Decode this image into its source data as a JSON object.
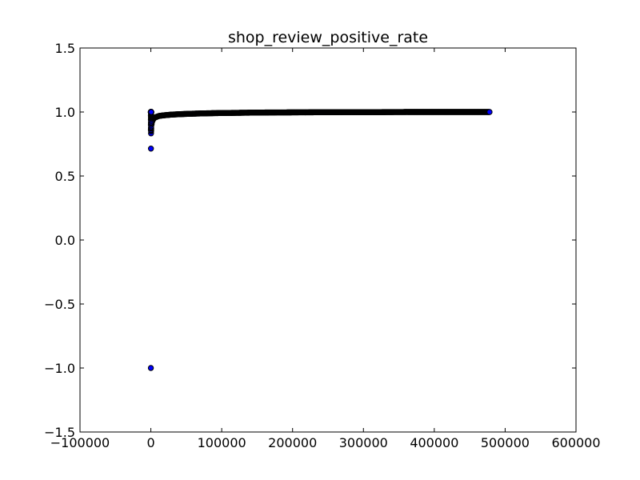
{
  "chart_data": {
    "type": "scatter",
    "title": "shop_review_positive_rate",
    "xlabel": "",
    "ylabel": "",
    "xlim": [
      -100000,
      600000
    ],
    "ylim": [
      -1.5,
      1.5
    ],
    "xticks": [
      -100000,
      0,
      100000,
      200000,
      300000,
      400000,
      500000,
      600000
    ],
    "yticks": [
      -1.5,
      -1.0,
      -0.5,
      0.0,
      0.5,
      1.0,
      1.5
    ],
    "xtick_labels": [
      "−100000",
      "0",
      "100000",
      "200000",
      "300000",
      "400000",
      "500000",
      "600000"
    ],
    "ytick_labels": [
      "−1.5",
      "−1.0",
      "−0.5",
      "0.0",
      "0.5",
      "1.0",
      "1.5"
    ],
    "grid": false,
    "marker_color": "#0000ff",
    "marker_edge_color": "#000000",
    "series": [
      {
        "x": [
          0,
          0,
          0,
          0,
          0,
          0,
          0,
          0,
          0,
          0,
          0,
          0,
          0,
          0,
          0,
          0,
          0,
          0,
          0,
          0,
          0,
          0,
          0,
          0,
          0,
          0,
          0,
          0,
          0,
          0,
          0,
          0,
          0,
          0,
          0,
          0,
          0,
          0,
          0,
          0,
          0,
          0,
          0,
          0,
          0,
          0,
          0,
          0,
          0,
          0,
          0,
          0,
          0,
          0,
          0,
          0,
          0,
          0,
          0,
          0,
          0,
          0,
          0,
          0,
          0,
          0,
          0,
          0,
          0,
          0,
          0,
          0,
          0,
          0,
          0,
          0,
          0,
          0,
          0,
          0,
          0,
          0,
          0,
          0,
          0,
          0,
          0,
          0,
          0,
          0,
          0,
          0,
          0,
          0,
          0,
          0,
          0,
          0,
          0,
          0,
          0,
          0,
          0,
          0,
          0,
          0,
          0,
          0,
          0,
          0,
          0,
          0,
          0,
          0,
          0,
          0,
          0,
          0,
          0,
          0
        ],
        "y": [
          -1.0,
          0.714,
          0.833,
          0.85,
          0.857,
          0.86,
          0.87,
          0.875,
          0.88,
          0.889,
          0.9,
          0.91,
          0.917,
          0.92,
          0.93,
          0.94,
          0.95,
          0.955,
          0.96,
          0.965,
          0.97,
          0.975,
          0.98,
          0.985,
          0.99,
          0.995,
          1.0,
          1.0,
          1.0,
          1.0,
          1.0,
          1.0,
          1.0,
          1.0,
          1.0,
          1.0,
          1.0,
          1.0,
          1.0,
          1.0,
          1.0,
          1.0,
          1.0,
          1.0,
          1.0,
          1.0,
          1.0,
          1.0,
          1.0,
          1.0,
          1.0,
          1.0,
          1.0,
          1.0,
          1.0,
          1.0,
          1.0,
          1.0,
          1.0,
          1.0,
          1.0,
          1.0,
          1.0,
          1.0,
          1.0,
          1.0,
          1.0,
          1.0,
          1.0,
          1.0,
          1.0,
          1.0,
          1.0,
          1.0,
          1.0,
          1.0,
          1.0,
          1.0,
          1.0,
          1.0,
          1.0,
          1.0,
          1.0,
          1.0,
          1.0,
          1.0,
          1.0,
          1.0,
          1.0,
          1.0,
          1.0,
          1.0,
          1.0,
          1.0,
          1.0,
          1.0,
          1.0,
          1.0,
          1.0,
          1.0,
          1.0,
          1.0,
          1.0,
          1.0,
          1.0,
          1.0,
          1.0,
          1.0,
          1.0,
          1.0,
          1.0,
          1.0,
          1.0,
          1.0,
          1.0,
          1.0,
          1.0,
          1.0,
          1.0,
          1.0
        ],
        "curve": {
          "x": [
            500,
            1000,
            2000,
            3000,
            5000,
            8000,
            12000,
            20000,
            30000,
            45000,
            60000,
            80000,
            100000,
            130000,
            160000,
            200000,
            240000,
            280000,
            320000,
            360000,
            400000,
            440000,
            470000,
            478000
          ],
          "y": [
            0.87,
            0.9,
            0.93,
            0.94,
            0.955,
            0.962,
            0.97,
            0.975,
            0.98,
            0.984,
            0.987,
            0.99,
            0.992,
            0.994,
            0.996,
            0.997,
            0.998,
            0.999,
            0.999,
            1.0,
            1.0,
            1.0,
            1.0,
            1.0
          ]
        }
      }
    ]
  }
}
